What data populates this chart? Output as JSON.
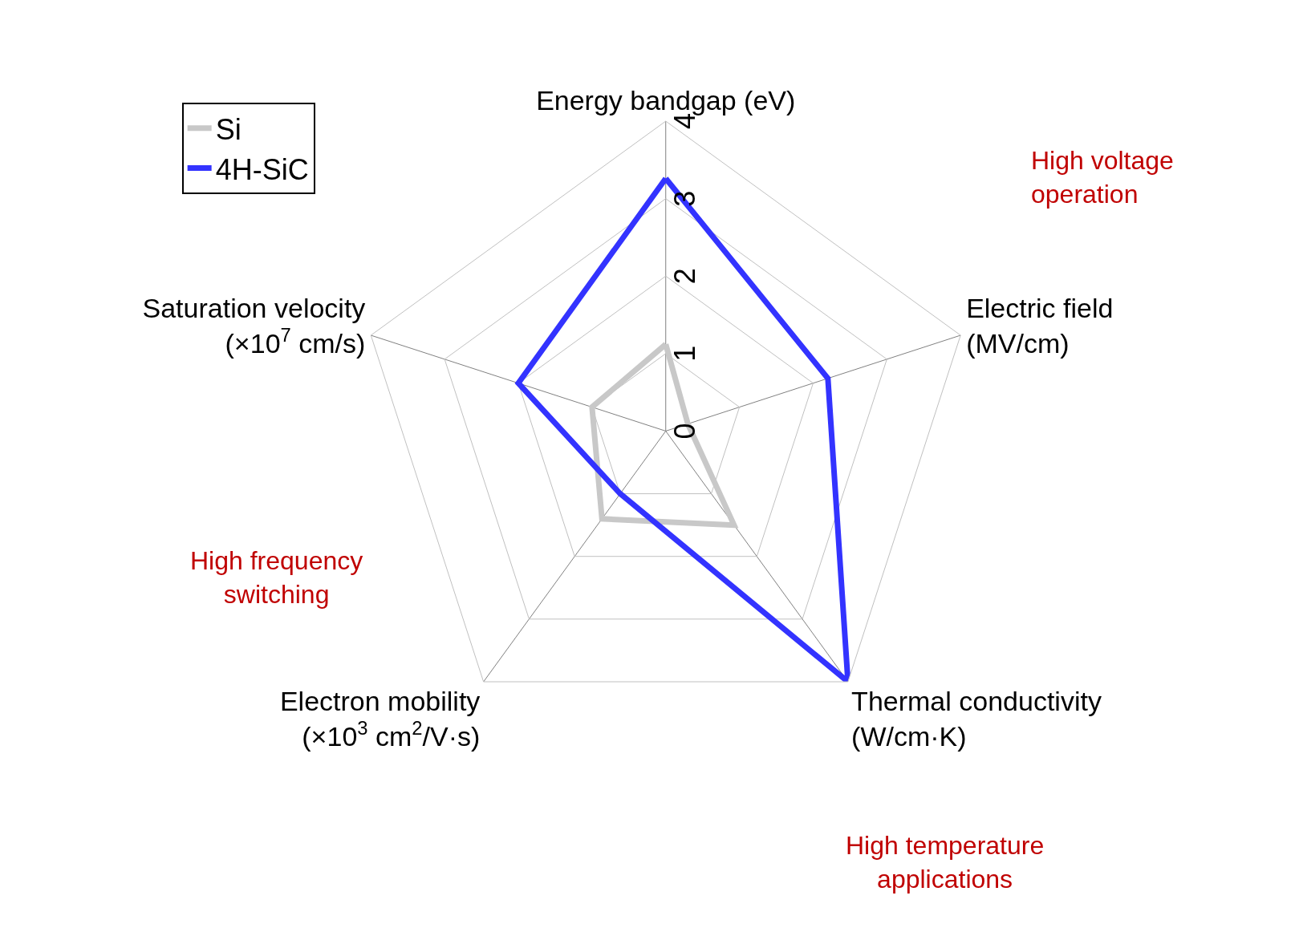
{
  "chart_data": {
    "type": "radar",
    "categories": [
      "Energy bandgap (eV)",
      "Electric field\n(MV/cm)",
      "Thermal conductivity\n(W/cm·K)",
      "Electron mobility\n(×10$^{3}$ cm$^{2}$/V·s)",
      "Saturation velocity\n(×10$^{7}$ cm/s)"
    ],
    "series": [
      {
        "name": "Si",
        "color": "#c8c8c8",
        "values": [
          1.12,
          0.3,
          1.5,
          1.4,
          1.0
        ]
      },
      {
        "name": "4H-SiC",
        "color": "#3333ff",
        "values": [
          3.26,
          2.2,
          4.0,
          1.0,
          2.0
        ]
      }
    ],
    "ylim": [
      0,
      4
    ],
    "yticks": [
      0,
      1,
      2,
      3,
      4
    ],
    "grid": true,
    "legend": "top left",
    "marker": "none",
    "line_style": "solid",
    "annotations": [
      "High voltage\noperation",
      "High frequency\nswitching",
      "High temperature\napplications"
    ]
  }
}
